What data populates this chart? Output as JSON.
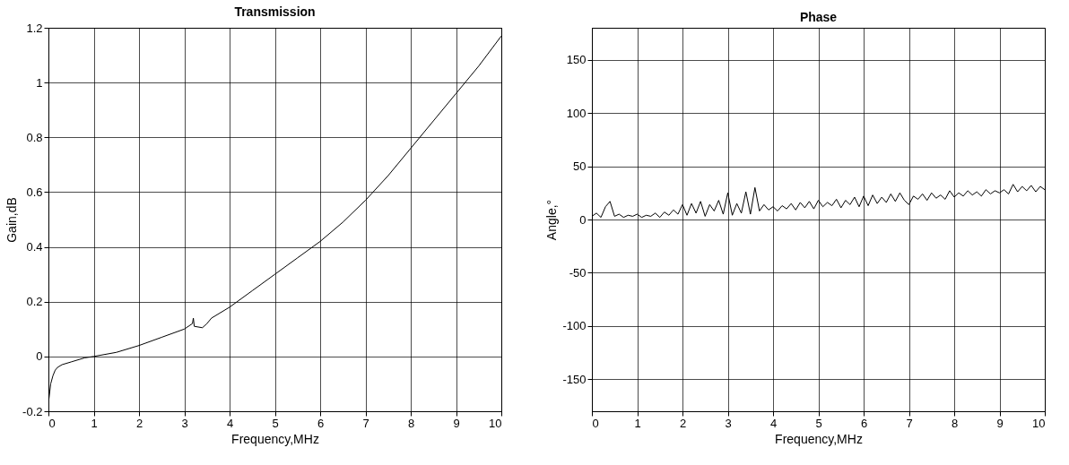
{
  "chart_data": [
    {
      "type": "line",
      "title": "Transmission",
      "xlabel": "Frequency,MHz",
      "ylabel": "Gain,dB",
      "x": [
        0,
        0.05,
        0.1,
        0.15,
        0.2,
        0.3,
        0.5,
        0.8,
        1,
        1.5,
        2,
        2.5,
        3,
        3.18,
        3.2,
        3.22,
        3.4,
        3.5,
        3.6,
        4,
        4.5,
        5,
        5.5,
        6,
        6.5,
        7,
        7.5,
        8,
        8.5,
        9,
        9.5,
        10
      ],
      "series": [
        {
          "color": "#000000",
          "values": [
            -0.17,
            -0.1,
            -0.07,
            -0.05,
            -0.04,
            -0.03,
            -0.02,
            -0.005,
            0,
            0.015,
            0.04,
            0.07,
            0.1,
            0.12,
            0.14,
            0.11,
            0.105,
            0.12,
            0.14,
            0.18,
            0.24,
            0.3,
            0.36,
            0.42,
            0.49,
            0.57,
            0.66,
            0.76,
            0.86,
            0.96,
            1.06,
            1.17
          ]
        }
      ],
      "xlim": [
        0,
        10
      ],
      "xticks": [
        0,
        1,
        2,
        3,
        4,
        5,
        6,
        7,
        8,
        9,
        10
      ],
      "ylim": [
        -0.2,
        1.2
      ],
      "yticks": [
        -0.2,
        0,
        0.2,
        0.4,
        0.6,
        0.8,
        1,
        1.2
      ],
      "grid": true
    },
    {
      "type": "line",
      "title": "Phase",
      "xlabel": "Frequency,MHz",
      "ylabel": "Angle,°",
      "x": [
        0,
        0.1,
        0.2,
        0.3,
        0.4,
        0.5,
        0.6,
        0.7,
        0.8,
        0.9,
        1,
        1.1,
        1.2,
        1.3,
        1.4,
        1.5,
        1.6,
        1.7,
        1.8,
        1.9,
        2,
        2.1,
        2.2,
        2.3,
        2.4,
        2.5,
        2.6,
        2.7,
        2.8,
        2.9,
        3,
        3.1,
        3.2,
        3.3,
        3.4,
        3.5,
        3.6,
        3.7,
        3.8,
        3.9,
        4,
        4.1,
        4.2,
        4.3,
        4.4,
        4.5,
        4.6,
        4.7,
        4.8,
        4.9,
        5,
        5.1,
        5.2,
        5.3,
        5.4,
        5.5,
        5.6,
        5.7,
        5.8,
        5.9,
        6,
        6.1,
        6.2,
        6.3,
        6.4,
        6.5,
        6.6,
        6.7,
        6.8,
        6.9,
        7,
        7.1,
        7.2,
        7.3,
        7.4,
        7.5,
        7.6,
        7.7,
        7.8,
        7.9,
        8,
        8.1,
        8.2,
        8.3,
        8.4,
        8.5,
        8.6,
        8.7,
        8.8,
        8.9,
        9,
        9.1,
        9.2,
        9.3,
        9.4,
        9.5,
        9.6,
        9.7,
        9.8,
        9.9,
        10
      ],
      "series": [
        {
          "color": "#000000",
          "values": [
            3,
            6,
            2,
            12,
            17,
            3,
            5,
            2,
            4,
            3,
            5,
            2,
            4,
            3,
            6,
            2,
            7,
            4,
            9,
            5,
            14,
            4,
            15,
            6,
            17,
            3,
            14,
            8,
            18,
            5,
            25,
            4,
            15,
            6,
            26,
            5,
            30,
            8,
            14,
            9,
            12,
            8,
            13,
            10,
            15,
            9,
            16,
            11,
            17,
            10,
            18,
            12,
            16,
            13,
            19,
            11,
            18,
            14,
            21,
            12,
            22,
            13,
            23,
            15,
            21,
            16,
            24,
            17,
            25,
            18,
            14,
            22,
            19,
            24,
            18,
            25,
            20,
            23,
            19,
            27,
            21,
            25,
            22,
            27,
            23,
            26,
            22,
            28,
            24,
            27,
            25,
            28,
            24,
            33,
            26,
            31,
            27,
            32,
            26,
            31,
            28
          ]
        }
      ],
      "xlim": [
        0,
        10
      ],
      "xticks": [
        0,
        1,
        2,
        3,
        4,
        5,
        6,
        7,
        8,
        9,
        10
      ],
      "ylim": [
        -180,
        180
      ],
      "yticks": [
        -150,
        -100,
        -50,
        0,
        50,
        100,
        150
      ],
      "grid": true
    }
  ]
}
